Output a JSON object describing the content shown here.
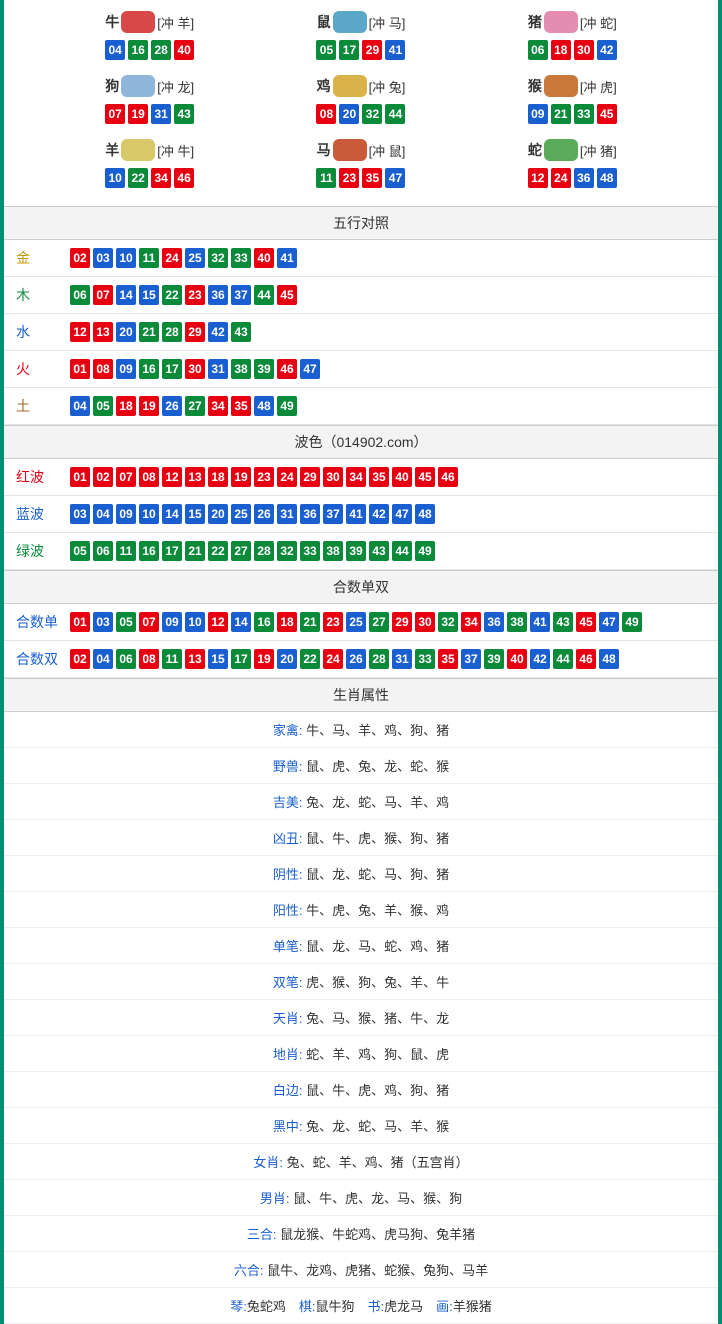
{
  "colors": {
    "red": "#e60012",
    "blue": "#1a5fd0",
    "green": "#0b8a3a",
    "border": "#018f74"
  },
  "zodiac": [
    {
      "name": "牛",
      "icon_color": "#d94848",
      "chong": "[冲 羊]",
      "nums": [
        {
          "n": "04",
          "c": "blue"
        },
        {
          "n": "16",
          "c": "green"
        },
        {
          "n": "28",
          "c": "green"
        },
        {
          "n": "40",
          "c": "red"
        }
      ]
    },
    {
      "name": "鼠",
      "icon_color": "#5aa7c9",
      "chong": "[冲 马]",
      "nums": [
        {
          "n": "05",
          "c": "green"
        },
        {
          "n": "17",
          "c": "green"
        },
        {
          "n": "29",
          "c": "red"
        },
        {
          "n": "41",
          "c": "blue"
        }
      ]
    },
    {
      "name": "猪",
      "icon_color": "#e48db0",
      "chong": "[冲 蛇]",
      "nums": [
        {
          "n": "06",
          "c": "green"
        },
        {
          "n": "18",
          "c": "red"
        },
        {
          "n": "30",
          "c": "red"
        },
        {
          "n": "42",
          "c": "blue"
        }
      ]
    },
    {
      "name": "狗",
      "icon_color": "#8fb6d8",
      "chong": "[冲 龙]",
      "nums": [
        {
          "n": "07",
          "c": "red"
        },
        {
          "n": "19",
          "c": "red"
        },
        {
          "n": "31",
          "c": "blue"
        },
        {
          "n": "43",
          "c": "green"
        }
      ]
    },
    {
      "name": "鸡",
      "icon_color": "#d9b24a",
      "chong": "[冲 兔]",
      "nums": [
        {
          "n": "08",
          "c": "red"
        },
        {
          "n": "20",
          "c": "blue"
        },
        {
          "n": "32",
          "c": "green"
        },
        {
          "n": "44",
          "c": "green"
        }
      ]
    },
    {
      "name": "猴",
      "icon_color": "#c97a3a",
      "chong": "[冲 虎]",
      "nums": [
        {
          "n": "09",
          "c": "blue"
        },
        {
          "n": "21",
          "c": "green"
        },
        {
          "n": "33",
          "c": "green"
        },
        {
          "n": "45",
          "c": "red"
        }
      ]
    },
    {
      "name": "羊",
      "icon_color": "#d9c86a",
      "chong": "[冲 牛]",
      "nums": [
        {
          "n": "10",
          "c": "blue"
        },
        {
          "n": "22",
          "c": "green"
        },
        {
          "n": "34",
          "c": "red"
        },
        {
          "n": "46",
          "c": "red"
        }
      ]
    },
    {
      "name": "马",
      "icon_color": "#c95a3a",
      "chong": "[冲 鼠]",
      "nums": [
        {
          "n": "11",
          "c": "green"
        },
        {
          "n": "23",
          "c": "red"
        },
        {
          "n": "35",
          "c": "red"
        },
        {
          "n": "47",
          "c": "blue"
        }
      ]
    },
    {
      "name": "蛇",
      "icon_color": "#5aaa5a",
      "chong": "[冲 猪]",
      "nums": [
        {
          "n": "12",
          "c": "red"
        },
        {
          "n": "24",
          "c": "red"
        },
        {
          "n": "36",
          "c": "blue"
        },
        {
          "n": "48",
          "c": "blue"
        }
      ]
    }
  ],
  "sections": {
    "wuxing": {
      "title": "五行对照",
      "rows": [
        {
          "label": "金",
          "cls": "c-gold",
          "nums": [
            {
              "n": "02",
              "c": "red"
            },
            {
              "n": "03",
              "c": "blue"
            },
            {
              "n": "10",
              "c": "blue"
            },
            {
              "n": "11",
              "c": "green"
            },
            {
              "n": "24",
              "c": "red"
            },
            {
              "n": "25",
              "c": "blue"
            },
            {
              "n": "32",
              "c": "green"
            },
            {
              "n": "33",
              "c": "green"
            },
            {
              "n": "40",
              "c": "red"
            },
            {
              "n": "41",
              "c": "blue"
            }
          ]
        },
        {
          "label": "木",
          "cls": "c-wood",
          "nums": [
            {
              "n": "06",
              "c": "green"
            },
            {
              "n": "07",
              "c": "red"
            },
            {
              "n": "14",
              "c": "blue"
            },
            {
              "n": "15",
              "c": "blue"
            },
            {
              "n": "22",
              "c": "green"
            },
            {
              "n": "23",
              "c": "red"
            },
            {
              "n": "36",
              "c": "blue"
            },
            {
              "n": "37",
              "c": "blue"
            },
            {
              "n": "44",
              "c": "green"
            },
            {
              "n": "45",
              "c": "red"
            }
          ]
        },
        {
          "label": "水",
          "cls": "c-water",
          "nums": [
            {
              "n": "12",
              "c": "red"
            },
            {
              "n": "13",
              "c": "red"
            },
            {
              "n": "20",
              "c": "blue"
            },
            {
              "n": "21",
              "c": "green"
            },
            {
              "n": "28",
              "c": "green"
            },
            {
              "n": "29",
              "c": "red"
            },
            {
              "n": "42",
              "c": "blue"
            },
            {
              "n": "43",
              "c": "green"
            }
          ]
        },
        {
          "label": "火",
          "cls": "c-fire",
          "nums": [
            {
              "n": "01",
              "c": "red"
            },
            {
              "n": "08",
              "c": "red"
            },
            {
              "n": "09",
              "c": "blue"
            },
            {
              "n": "16",
              "c": "green"
            },
            {
              "n": "17",
              "c": "green"
            },
            {
              "n": "30",
              "c": "red"
            },
            {
              "n": "31",
              "c": "blue"
            },
            {
              "n": "38",
              "c": "green"
            },
            {
              "n": "39",
              "c": "green"
            },
            {
              "n": "46",
              "c": "red"
            },
            {
              "n": "47",
              "c": "blue"
            }
          ]
        },
        {
          "label": "土",
          "cls": "c-earth",
          "nums": [
            {
              "n": "04",
              "c": "blue"
            },
            {
              "n": "05",
              "c": "green"
            },
            {
              "n": "18",
              "c": "red"
            },
            {
              "n": "19",
              "c": "red"
            },
            {
              "n": "26",
              "c": "blue"
            },
            {
              "n": "27",
              "c": "green"
            },
            {
              "n": "34",
              "c": "red"
            },
            {
              "n": "35",
              "c": "red"
            },
            {
              "n": "48",
              "c": "blue"
            },
            {
              "n": "49",
              "c": "green"
            }
          ]
        }
      ]
    },
    "bose": {
      "title": "波色（014902.com）",
      "rows": [
        {
          "label": "红波",
          "cls": "c-red",
          "nums": [
            {
              "n": "01",
              "c": "red"
            },
            {
              "n": "02",
              "c": "red"
            },
            {
              "n": "07",
              "c": "red"
            },
            {
              "n": "08",
              "c": "red"
            },
            {
              "n": "12",
              "c": "red"
            },
            {
              "n": "13",
              "c": "red"
            },
            {
              "n": "18",
              "c": "red"
            },
            {
              "n": "19",
              "c": "red"
            },
            {
              "n": "23",
              "c": "red"
            },
            {
              "n": "24",
              "c": "red"
            },
            {
              "n": "29",
              "c": "red"
            },
            {
              "n": "30",
              "c": "red"
            },
            {
              "n": "34",
              "c": "red"
            },
            {
              "n": "35",
              "c": "red"
            },
            {
              "n": "40",
              "c": "red"
            },
            {
              "n": "45",
              "c": "red"
            },
            {
              "n": "46",
              "c": "red"
            }
          ]
        },
        {
          "label": "蓝波",
          "cls": "c-blue",
          "nums": [
            {
              "n": "03",
              "c": "blue"
            },
            {
              "n": "04",
              "c": "blue"
            },
            {
              "n": "09",
              "c": "blue"
            },
            {
              "n": "10",
              "c": "blue"
            },
            {
              "n": "14",
              "c": "blue"
            },
            {
              "n": "15",
              "c": "blue"
            },
            {
              "n": "20",
              "c": "blue"
            },
            {
              "n": "25",
              "c": "blue"
            },
            {
              "n": "26",
              "c": "blue"
            },
            {
              "n": "31",
              "c": "blue"
            },
            {
              "n": "36",
              "c": "blue"
            },
            {
              "n": "37",
              "c": "blue"
            },
            {
              "n": "41",
              "c": "blue"
            },
            {
              "n": "42",
              "c": "blue"
            },
            {
              "n": "47",
              "c": "blue"
            },
            {
              "n": "48",
              "c": "blue"
            }
          ]
        },
        {
          "label": "绿波",
          "cls": "c-green",
          "nums": [
            {
              "n": "05",
              "c": "green"
            },
            {
              "n": "06",
              "c": "green"
            },
            {
              "n": "11",
              "c": "green"
            },
            {
              "n": "16",
              "c": "green"
            },
            {
              "n": "17",
              "c": "green"
            },
            {
              "n": "21",
              "c": "green"
            },
            {
              "n": "22",
              "c": "green"
            },
            {
              "n": "27",
              "c": "green"
            },
            {
              "n": "28",
              "c": "green"
            },
            {
              "n": "32",
              "c": "green"
            },
            {
              "n": "33",
              "c": "green"
            },
            {
              "n": "38",
              "c": "green"
            },
            {
              "n": "39",
              "c": "green"
            },
            {
              "n": "43",
              "c": "green"
            },
            {
              "n": "44",
              "c": "green"
            },
            {
              "n": "49",
              "c": "green"
            }
          ]
        }
      ]
    },
    "heshu": {
      "title": "合数单双",
      "rows": [
        {
          "label": "合数单",
          "cls": "c-blue",
          "nums": [
            {
              "n": "01",
              "c": "red"
            },
            {
              "n": "03",
              "c": "blue"
            },
            {
              "n": "05",
              "c": "green"
            },
            {
              "n": "07",
              "c": "red"
            },
            {
              "n": "09",
              "c": "blue"
            },
            {
              "n": "10",
              "c": "blue"
            },
            {
              "n": "12",
              "c": "red"
            },
            {
              "n": "14",
              "c": "blue"
            },
            {
              "n": "16",
              "c": "green"
            },
            {
              "n": "18",
              "c": "red"
            },
            {
              "n": "21",
              "c": "green"
            },
            {
              "n": "23",
              "c": "red"
            },
            {
              "n": "25",
              "c": "blue"
            },
            {
              "n": "27",
              "c": "green"
            },
            {
              "n": "29",
              "c": "red"
            },
            {
              "n": "30",
              "c": "red"
            },
            {
              "n": "32",
              "c": "green"
            },
            {
              "n": "34",
              "c": "red"
            },
            {
              "n": "36",
              "c": "blue"
            },
            {
              "n": "38",
              "c": "green"
            },
            {
              "n": "41",
              "c": "blue"
            },
            {
              "n": "43",
              "c": "green"
            },
            {
              "n": "45",
              "c": "red"
            },
            {
              "n": "47",
              "c": "blue"
            },
            {
              "n": "49",
              "c": "green"
            }
          ]
        },
        {
          "label": "合数双",
          "cls": "c-blue",
          "nums": [
            {
              "n": "02",
              "c": "red"
            },
            {
              "n": "04",
              "c": "blue"
            },
            {
              "n": "06",
              "c": "green"
            },
            {
              "n": "08",
              "c": "red"
            },
            {
              "n": "11",
              "c": "green"
            },
            {
              "n": "13",
              "c": "red"
            },
            {
              "n": "15",
              "c": "blue"
            },
            {
              "n": "17",
              "c": "green"
            },
            {
              "n": "19",
              "c": "red"
            },
            {
              "n": "20",
              "c": "blue"
            },
            {
              "n": "22",
              "c": "green"
            },
            {
              "n": "24",
              "c": "red"
            },
            {
              "n": "26",
              "c": "blue"
            },
            {
              "n": "28",
              "c": "green"
            },
            {
              "n": "31",
              "c": "blue"
            },
            {
              "n": "33",
              "c": "green"
            },
            {
              "n": "35",
              "c": "red"
            },
            {
              "n": "37",
              "c": "blue"
            },
            {
              "n": "39",
              "c": "green"
            },
            {
              "n": "40",
              "c": "red"
            },
            {
              "n": "42",
              "c": "blue"
            },
            {
              "n": "44",
              "c": "green"
            },
            {
              "n": "46",
              "c": "red"
            },
            {
              "n": "48",
              "c": "blue"
            }
          ]
        }
      ]
    },
    "shuxing": {
      "title": "生肖属性",
      "rows": [
        {
          "k": "家禽",
          "v": "牛、马、羊、鸡、狗、猪"
        },
        {
          "k": "野兽",
          "v": "鼠、虎、兔、龙、蛇、猴"
        },
        {
          "k": "吉美",
          "v": "兔、龙、蛇、马、羊、鸡"
        },
        {
          "k": "凶丑",
          "v": "鼠、牛、虎、猴、狗、猪"
        },
        {
          "k": "阴性",
          "v": "鼠、龙、蛇、马、狗、猪"
        },
        {
          "k": "阳性",
          "v": "牛、虎、兔、羊、猴、鸡"
        },
        {
          "k": "单笔",
          "v": "鼠、龙、马、蛇、鸡、猪"
        },
        {
          "k": "双笔",
          "v": "虎、猴、狗、兔、羊、牛"
        },
        {
          "k": "天肖",
          "v": "兔、马、猴、猪、牛、龙"
        },
        {
          "k": "地肖",
          "v": "蛇、羊、鸡、狗、鼠、虎"
        },
        {
          "k": "白边",
          "v": "鼠、牛、虎、鸡、狗、猪"
        },
        {
          "k": "黑中",
          "v": "兔、龙、蛇、马、羊、猴"
        },
        {
          "k": "女肖",
          "v": "兔、蛇、羊、鸡、猪（五宫肖）"
        },
        {
          "k": "男肖",
          "v": "鼠、牛、虎、龙、马、猴、狗"
        },
        {
          "k": "三合",
          "v": "鼠龙猴、牛蛇鸡、虎马狗、兔羊猪"
        },
        {
          "k": "六合",
          "v": "鼠牛、龙鸡、虎猪、蛇猴、兔狗、马羊"
        }
      ],
      "footer": [
        {
          "k": "琴",
          "v": "兔蛇鸡"
        },
        {
          "k": "棋",
          "v": "鼠牛狗"
        },
        {
          "k": "书",
          "v": "虎龙马"
        },
        {
          "k": "画",
          "v": "羊猴猪"
        }
      ]
    }
  }
}
